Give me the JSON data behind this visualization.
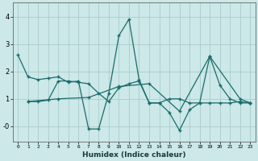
{
  "title": "",
  "xlabel": "Humidex (Indice chaleur)",
  "bg_color": "#cce8e8",
  "grid_color": "#aacccc",
  "line_color": "#1a6b6b",
  "xlim": [
    -0.5,
    23.5
  ],
  "ylim": [
    -0.55,
    4.5
  ],
  "xticks": [
    0,
    1,
    2,
    3,
    4,
    5,
    6,
    7,
    8,
    9,
    10,
    11,
    12,
    13,
    14,
    15,
    16,
    17,
    18,
    19,
    20,
    21,
    22,
    23
  ],
  "yticks": [
    0,
    1,
    2,
    3,
    4
  ],
  "ytick_labels": [
    "-0",
    "1",
    "2",
    "3",
    "4"
  ],
  "series1": [
    [
      0,
      2.6
    ],
    [
      1,
      1.8
    ],
    [
      2,
      1.7
    ],
    [
      3,
      1.75
    ],
    [
      4,
      1.8
    ],
    [
      5,
      1.6
    ],
    [
      6,
      1.65
    ],
    [
      7,
      -0.1
    ],
    [
      8,
      -0.1
    ],
    [
      9,
      1.2
    ],
    [
      10,
      3.3
    ],
    [
      11,
      3.9
    ],
    [
      12,
      1.7
    ],
    [
      13,
      0.85
    ],
    [
      14,
      0.85
    ],
    [
      15,
      0.5
    ],
    [
      16,
      -0.15
    ],
    [
      17,
      0.6
    ],
    [
      18,
      0.85
    ],
    [
      19,
      2.55
    ],
    [
      20,
      1.5
    ],
    [
      21,
      1.0
    ],
    [
      22,
      0.85
    ],
    [
      23,
      0.85
    ]
  ],
  "series2": [
    [
      1,
      0.9
    ],
    [
      2,
      0.9
    ],
    [
      3,
      0.95
    ],
    [
      4,
      1.65
    ],
    [
      5,
      1.65
    ],
    [
      6,
      1.6
    ],
    [
      7,
      1.55
    ],
    [
      8,
      1.2
    ],
    [
      9,
      0.9
    ],
    [
      10,
      1.4
    ],
    [
      11,
      1.55
    ],
    [
      12,
      1.65
    ],
    [
      13,
      0.85
    ],
    [
      14,
      0.85
    ],
    [
      15,
      1.0
    ],
    [
      16,
      1.0
    ],
    [
      17,
      0.85
    ],
    [
      18,
      0.85
    ],
    [
      19,
      0.85
    ],
    [
      20,
      0.85
    ],
    [
      21,
      0.85
    ],
    [
      22,
      0.9
    ],
    [
      23,
      0.85
    ]
  ],
  "series3": [
    [
      1,
      0.9
    ],
    [
      4,
      1.0
    ],
    [
      7,
      1.05
    ],
    [
      10,
      1.45
    ],
    [
      13,
      1.55
    ],
    [
      16,
      0.55
    ],
    [
      19,
      2.55
    ],
    [
      22,
      1.0
    ],
    [
      23,
      0.85
    ]
  ]
}
